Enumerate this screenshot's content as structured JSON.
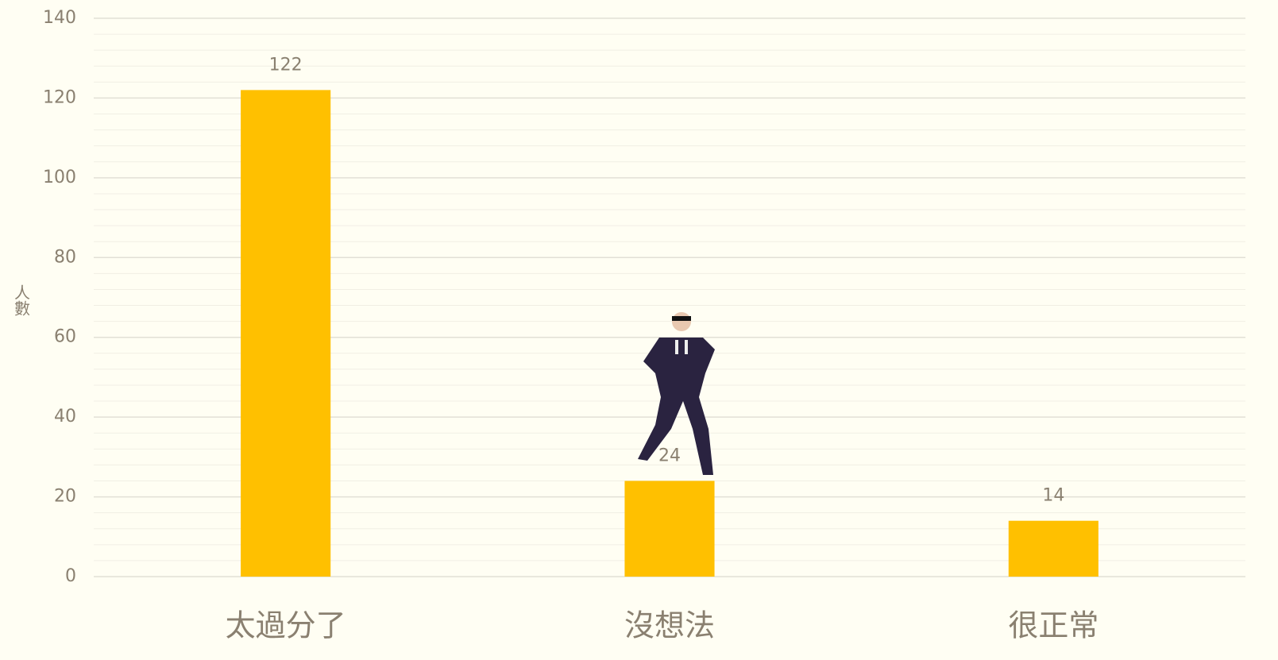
{
  "chart_data": {
    "type": "bar",
    "ylabel": "人數",
    "categories": [
      "太過分了",
      "沒想法",
      "很正常"
    ],
    "values": [
      122,
      24,
      14
    ],
    "color": "#ffc000",
    "ylim": [
      0,
      140
    ],
    "yticks": [
      0,
      20,
      40,
      60,
      80,
      100,
      120,
      140
    ],
    "grid": true
  }
}
